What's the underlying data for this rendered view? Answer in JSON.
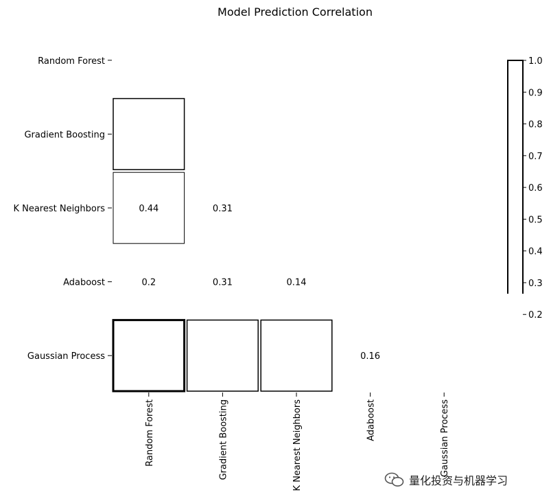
{
  "chart_data": {
    "type": "heatmap",
    "title": "Model Prediction Correlation",
    "rows": [
      "Random Forest",
      "Gradient Boosting",
      "K Nearest Neighbors",
      "Adaboost",
      "Gaussian Process"
    ],
    "columns": [
      "Random Forest",
      "Gradient Boosting",
      "K Nearest Neighbors",
      "Adaboost",
      "Gaussian Process"
    ],
    "mask": "upper-triangle-and-diagonal",
    "cells": [
      {
        "row": 1,
        "col": 0,
        "value": null,
        "label": ""
      },
      {
        "row": 2,
        "col": 0,
        "value": 0.44,
        "label": "0.44"
      },
      {
        "row": 2,
        "col": 1,
        "value": 0.31,
        "label": "0.31"
      },
      {
        "row": 3,
        "col": 0,
        "value": 0.2,
        "label": "0.2"
      },
      {
        "row": 3,
        "col": 1,
        "value": 0.31,
        "label": "0.31"
      },
      {
        "row": 3,
        "col": 2,
        "value": 0.14,
        "label": "0.14"
      },
      {
        "row": 4,
        "col": 0,
        "value": null,
        "label": ""
      },
      {
        "row": 4,
        "col": 1,
        "value": null,
        "label": ""
      },
      {
        "row": 4,
        "col": 2,
        "value": null,
        "label": ""
      },
      {
        "row": 4,
        "col": 3,
        "value": 0.16,
        "label": "0.16"
      }
    ],
    "colorbar": {
      "ticks": [
        1.0,
        0.9,
        0.8,
        0.7,
        0.6,
        0.5,
        0.4,
        0.3,
        0.2
      ],
      "tick_labels": [
        "1.0",
        "0.9",
        "0.8",
        "0.7",
        "0.6",
        "0.5",
        "0.4",
        "0.3",
        "0.2"
      ],
      "range": [
        0.14,
        1.0
      ]
    }
  },
  "watermark": {
    "text": "量化投资与机器学习",
    "icon": "wechat-logo"
  }
}
